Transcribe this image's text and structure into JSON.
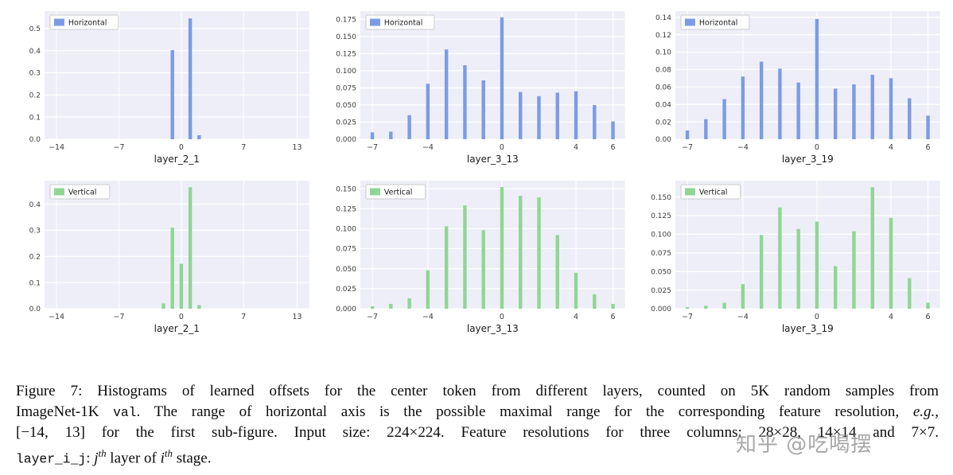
{
  "watermark": {
    "text": "知乎 @吃喝摆"
  },
  "colors": {
    "horizontal": "#7d9be4",
    "vertical": "#8fd694",
    "plot_bg": "#edeef7",
    "grid": "#ffffff",
    "tick_text": "#3b3b3b",
    "legend_bg": "#ffffff",
    "legend_border": "#cccccc"
  },
  "chart_data": [
    {
      "type": "bar",
      "legend": "Horizontal",
      "series": "horizontal",
      "xlabel": "layer_2_1",
      "x": [
        -1,
        1,
        2
      ],
      "values": [
        0.402,
        0.545,
        0.018
      ],
      "xlim": [
        -15.35,
        14.35
      ],
      "ylim": [
        0,
        0.578
      ],
      "xticks": [
        -14,
        -7,
        0,
        7,
        13
      ],
      "xtick_labels": [
        "−14",
        "−7",
        "0",
        "7",
        "13"
      ],
      "yticks": [
        0,
        0.1,
        0.2,
        0.3,
        0.4,
        0.5
      ],
      "ytick_labels": [
        "0.0",
        "0.1",
        "0.2",
        "0.3",
        "0.4",
        "0.5"
      ]
    },
    {
      "type": "bar",
      "legend": "Horizontal",
      "series": "horizontal",
      "xlabel": "layer_3_13",
      "x": [
        -7,
        -6,
        -5,
        -4,
        -3,
        -2,
        -1,
        0,
        1,
        2,
        3,
        4,
        5,
        6
      ],
      "values": [
        0.01,
        0.011,
        0.035,
        0.081,
        0.131,
        0.108,
        0.086,
        0.178,
        0.069,
        0.063,
        0.068,
        0.07,
        0.05,
        0.026
      ],
      "xlim": [
        -7.65,
        6.65
      ],
      "ylim": [
        0,
        0.187
      ],
      "xticks": [
        -7,
        -4,
        0,
        4,
        6
      ],
      "xtick_labels": [
        "−7",
        "−4",
        "0",
        "4",
        "6"
      ],
      "yticks": [
        0,
        0.025,
        0.05,
        0.075,
        0.1,
        0.125,
        0.15,
        0.175
      ],
      "ytick_labels": [
        "0.000",
        "0.025",
        "0.050",
        "0.075",
        "0.100",
        "0.125",
        "0.150",
        "0.175"
      ]
    },
    {
      "type": "bar",
      "legend": "Horizontal",
      "series": "horizontal",
      "xlabel": "layer_3_19",
      "x": [
        -7,
        -6,
        -5,
        -4,
        -3,
        -2,
        -1,
        0,
        1,
        2,
        3,
        4,
        5,
        6
      ],
      "values": [
        0.01,
        0.023,
        0.046,
        0.072,
        0.089,
        0.081,
        0.065,
        0.138,
        0.058,
        0.063,
        0.074,
        0.07,
        0.047,
        0.027
      ],
      "xlim": [
        -7.65,
        6.65
      ],
      "ylim": [
        0,
        0.147
      ],
      "xticks": [
        -7,
        -4,
        0,
        4,
        6
      ],
      "xtick_labels": [
        "−7",
        "−4",
        "0",
        "4",
        "6"
      ],
      "yticks": [
        0,
        0.02,
        0.04,
        0.06,
        0.08,
        0.1,
        0.12,
        0.14
      ],
      "ytick_labels": [
        "0.00",
        "0.02",
        "0.04",
        "0.06",
        "0.08",
        "0.10",
        "0.12",
        "0.14"
      ]
    },
    {
      "type": "bar",
      "legend": "Vertical",
      "series": "vertical",
      "xlabel": "layer_2_1",
      "x": [
        -2,
        -1,
        0,
        1,
        2
      ],
      "values": [
        0.02,
        0.31,
        0.172,
        0.465,
        0.014
      ],
      "xlim": [
        -15.35,
        14.35
      ],
      "ylim": [
        0,
        0.49
      ],
      "xticks": [
        -14,
        -7,
        0,
        7,
        13
      ],
      "xtick_labels": [
        "−14",
        "−7",
        "0",
        "7",
        "13"
      ],
      "yticks": [
        0,
        0.1,
        0.2,
        0.3,
        0.4
      ],
      "ytick_labels": [
        "0.0",
        "0.1",
        "0.2",
        "0.3",
        "0.4"
      ]
    },
    {
      "type": "bar",
      "legend": "Vertical",
      "series": "vertical",
      "xlabel": "layer_3_13",
      "x": [
        -7,
        -6,
        -5,
        -4,
        -3,
        -2,
        -1,
        0,
        1,
        2,
        3,
        4,
        5,
        6
      ],
      "values": [
        0.003,
        0.006,
        0.013,
        0.048,
        0.103,
        0.129,
        0.098,
        0.152,
        0.141,
        0.139,
        0.092,
        0.045,
        0.018,
        0.006
      ],
      "xlim": [
        -7.65,
        6.65
      ],
      "ylim": [
        0,
        0.16
      ],
      "xticks": [
        -7,
        -4,
        0,
        4,
        6
      ],
      "xtick_labels": [
        "−7",
        "−4",
        "0",
        "4",
        "6"
      ],
      "yticks": [
        0,
        0.025,
        0.05,
        0.075,
        0.1,
        0.125,
        0.15
      ],
      "ytick_labels": [
        "0.000",
        "0.025",
        "0.050",
        "0.075",
        "0.100",
        "0.125",
        "0.150"
      ]
    },
    {
      "type": "bar",
      "legend": "Vertical",
      "series": "vertical",
      "xlabel": "layer_3_19",
      "x": [
        -7,
        -6,
        -5,
        -4,
        -3,
        -2,
        -1,
        0,
        1,
        2,
        3,
        4,
        5,
        6
      ],
      "values": [
        0.002,
        0.004,
        0.008,
        0.033,
        0.099,
        0.136,
        0.107,
        0.117,
        0.057,
        0.104,
        0.163,
        0.122,
        0.041,
        0.008
      ],
      "xlim": [
        -7.65,
        6.65
      ],
      "ylim": [
        0,
        0.172
      ],
      "xticks": [
        -7,
        -4,
        0,
        4,
        6
      ],
      "xtick_labels": [
        "−7",
        "−4",
        "0",
        "4",
        "6"
      ],
      "yticks": [
        0,
        0.025,
        0.05,
        0.075,
        0.1,
        0.125,
        0.15
      ],
      "ytick_labels": [
        "0.000",
        "0.025",
        "0.050",
        "0.075",
        "0.100",
        "0.125",
        "0.150"
      ]
    }
  ],
  "caption": {
    "lines": [
      [
        {
          "t": "Figure 7: Histograms of learned offsets for the center token from different layers, counted on 5K random samples from",
          "s": "serif"
        }
      ],
      [
        {
          "t": "ImageNet-1K ",
          "s": "serif"
        },
        {
          "t": "val",
          "s": "mono"
        },
        {
          "t": ". The range of horizontal axis is the possible maximal range for the corresponding feature resolution, ",
          "s": "serif"
        },
        {
          "t": "e.g.",
          "s": "italic"
        },
        {
          "t": ",",
          "s": "serif"
        }
      ],
      [
        {
          "t": "[−14, 13] for the first sub-figure. Input size: 224×224. Feature resolutions for three columns: 28×28, 14×14 and 7×7.",
          "s": "serif"
        }
      ],
      [
        {
          "t": "layer_i_j",
          "s": "mono"
        },
        {
          "t": ": ",
          "s": "serif"
        },
        {
          "t": "j",
          "s": "italic"
        },
        {
          "t": "th",
          "s": "sup"
        },
        {
          "t": " layer of ",
          "s": "serif"
        },
        {
          "t": "i",
          "s": "italic"
        },
        {
          "t": "th",
          "s": "sup"
        },
        {
          "t": " stage.",
          "s": "serif"
        }
      ]
    ]
  }
}
